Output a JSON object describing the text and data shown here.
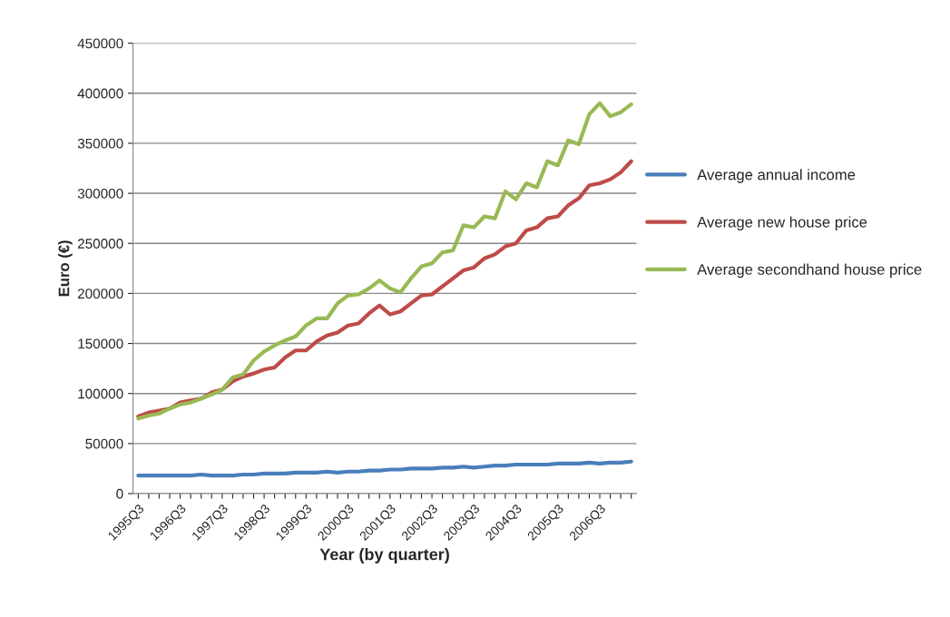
{
  "chart_data": {
    "type": "line",
    "xlabel": "Year (by quarter)",
    "ylabel": "Euro (€)",
    "categories": [
      "1995Q3",
      null,
      null,
      null,
      "1996Q3",
      null,
      null,
      null,
      "1997Q3",
      null,
      null,
      null,
      "1998Q3",
      null,
      null,
      null,
      "1999Q3",
      null,
      null,
      null,
      "2000Q3",
      null,
      null,
      null,
      "2001Q3",
      null,
      null,
      null,
      "2002Q3",
      null,
      null,
      null,
      "2003Q3",
      null,
      null,
      null,
      "2004Q3",
      null,
      null,
      null,
      "2005Q3",
      null,
      null,
      null,
      "2006Q3",
      null,
      null,
      null
    ],
    "series": [
      {
        "name": "Average annual income",
        "color": "#4a7ebb",
        "values": [
          18000,
          18000,
          18000,
          18000,
          18000,
          18000,
          19000,
          18000,
          18000,
          18000,
          19000,
          19000,
          20000,
          20000,
          20000,
          21000,
          21000,
          21000,
          22000,
          21000,
          22000,
          22000,
          23000,
          23000,
          24000,
          24000,
          25000,
          25000,
          25000,
          26000,
          26000,
          27000,
          26000,
          27000,
          28000,
          28000,
          29000,
          29000,
          29000,
          29000,
          30000,
          30000,
          30000,
          31000,
          30000,
          31000,
          31000,
          32000
        ]
      },
      {
        "name": "Average new house price",
        "color": "#be4b48",
        "values": [
          77000,
          81000,
          83000,
          85000,
          91000,
          93000,
          95000,
          101000,
          104000,
          112000,
          117000,
          120000,
          124000,
          126000,
          136000,
          143000,
          143000,
          152000,
          158000,
          161000,
          168000,
          170000,
          180000,
          188000,
          179000,
          182000,
          190000,
          198000,
          199000,
          207000,
          215000,
          223000,
          226000,
          235000,
          239000,
          247000,
          250000,
          263000,
          266000,
          275000,
          277000,
          288000,
          295000,
          308000,
          310000,
          314000,
          321000,
          332000
        ]
      },
      {
        "name": "Average secondhand house price",
        "color": "#98b954",
        "values": [
          75000,
          78000,
          80000,
          85000,
          89000,
          91000,
          95000,
          99000,
          104000,
          116000,
          119000,
          133000,
          142000,
          148000,
          153000,
          157000,
          168000,
          175000,
          175000,
          190000,
          198000,
          199000,
          205000,
          213000,
          205000,
          201000,
          215000,
          227000,
          230000,
          241000,
          243000,
          268000,
          266000,
          277000,
          275000,
          302000,
          294000,
          310000,
          306000,
          332000,
          328000,
          353000,
          349000,
          379000,
          390000,
          377000,
          381000,
          389000
        ]
      }
    ],
    "ylim": [
      0,
      450000
    ],
    "yticks": [
      0,
      50000,
      100000,
      150000,
      200000,
      250000,
      300000,
      350000,
      400000,
      450000
    ],
    "grid": "y",
    "legend": "right",
    "marker": "none",
    "line_style": "solid"
  }
}
